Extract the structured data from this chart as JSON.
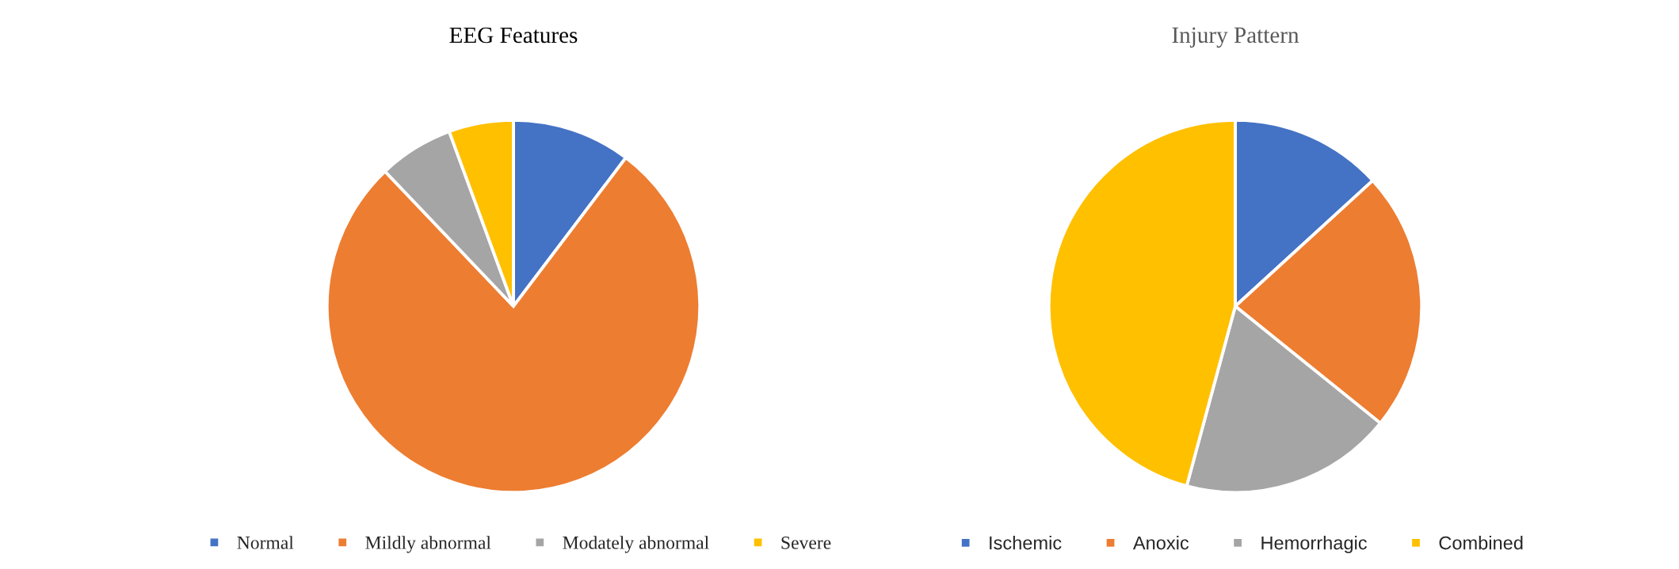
{
  "chart_data": [
    {
      "type": "pie",
      "title": "EEG Features",
      "categories": [
        "Normal",
        "Mildly abnormal",
        "Modately abnormal",
        "Severe"
      ],
      "values": [
        10.3,
        77.6,
        6.5,
        5.6
      ],
      "colors": [
        "#4472c4",
        "#ed7d31",
        "#a5a5a5",
        "#ffc000"
      ],
      "legend": "bottom"
    },
    {
      "type": "pie",
      "title": "Injury Pattern",
      "categories": [
        "Ischemic",
        "Anoxic",
        "Hemorrhagic",
        "Combined"
      ],
      "values": [
        13.2,
        22.6,
        18.4,
        45.8
      ],
      "colors": [
        "#4472c4",
        "#ed7d31",
        "#a5a5a5",
        "#ffc000"
      ],
      "legend": "bottom"
    }
  ]
}
